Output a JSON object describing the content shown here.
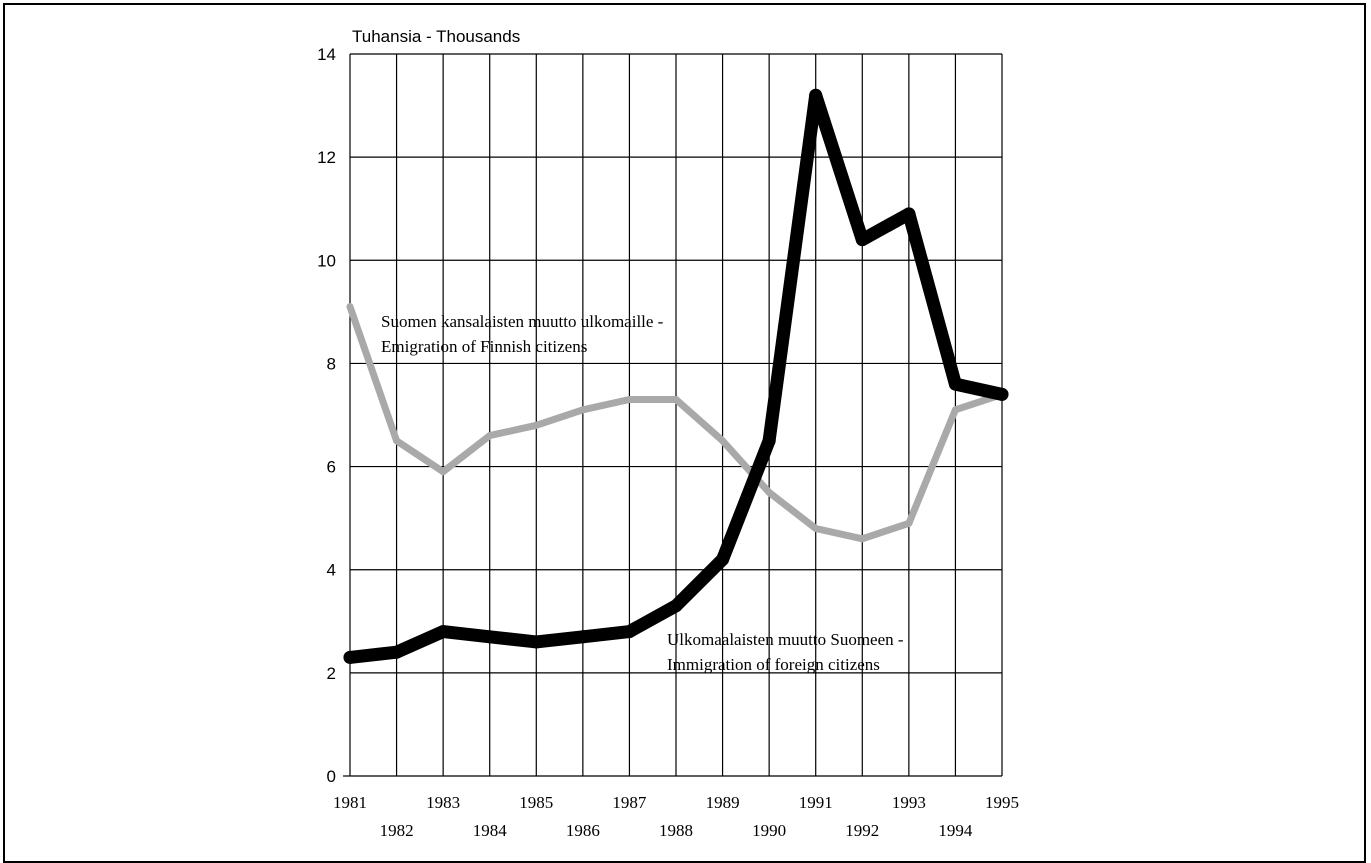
{
  "chart_data": {
    "type": "line",
    "unit_label": "Tuhansia - Thousands",
    "x": [
      1981,
      1982,
      1983,
      1984,
      1985,
      1986,
      1987,
      1988,
      1989,
      1990,
      1991,
      1992,
      1993,
      1994,
      1995
    ],
    "x_tick_labels_upper": [
      "1981",
      "1983",
      "1985",
      "1987",
      "1989",
      "1991",
      "1993",
      "1995"
    ],
    "x_tick_labels_lower": [
      "1982",
      "1984",
      "1986",
      "1988",
      "1990",
      "1992",
      "1994"
    ],
    "y_tick_labels": [
      "0",
      "2",
      "4",
      "6",
      "8",
      "10",
      "12",
      "14"
    ],
    "ylim": [
      0,
      14
    ],
    "grid": true,
    "series": [
      {
        "name": "Suomen kansalaisten muutto ulkomaille - Emigration of Finnish citizens",
        "label_line1": "Suomen kansalaisten muutto ulkomaille -",
        "label_line2": "Emigration of Finnish citizens",
        "color": "#a9a9a9",
        "values": [
          9.1,
          6.5,
          5.9,
          6.6,
          6.8,
          7.1,
          7.3,
          7.3,
          6.5,
          5.5,
          4.8,
          4.6,
          4.9,
          7.1,
          7.4
        ]
      },
      {
        "name": "Ulkomaalaisten muutto Suomeen - Immigration of foreign citizens",
        "label_line1": "Ulkomaalaisten muutto Suomeen -",
        "label_line2": "Immigration of foreign citizens",
        "color": "#000000",
        "values": [
          2.3,
          2.4,
          2.8,
          2.7,
          2.6,
          2.7,
          2.8,
          3.3,
          4.2,
          6.5,
          13.2,
          10.4,
          10.9,
          7.6,
          7.4
        ]
      }
    ]
  }
}
